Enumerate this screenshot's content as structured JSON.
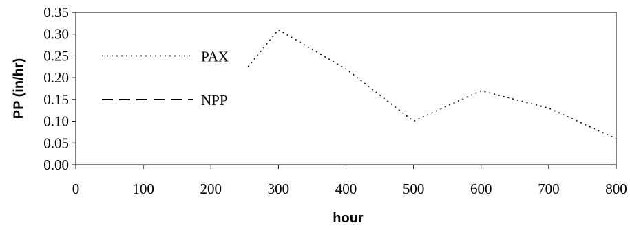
{
  "chart_data": {
    "type": "line",
    "title": "",
    "xlabel": "hour",
    "ylabel": "PP (in/hr)",
    "xlim": [
      0,
      800
    ],
    "ylim": [
      0,
      0.35
    ],
    "x_ticks": [
      "0",
      "100",
      "200",
      "300",
      "400",
      "500",
      "600",
      "700",
      "800"
    ],
    "y_ticks": [
      "0.00",
      "0.05",
      "0.10",
      "0.15",
      "0.20",
      "0.25",
      "0.30",
      "0.35"
    ],
    "grid": false,
    "legend_position": "left",
    "series": [
      {
        "name": "PAX",
        "style": "dotted",
        "color": "#000000",
        "x": [
          255,
          300,
          400,
          500,
          600,
          700,
          800
        ],
        "y": [
          0.225,
          0.31,
          0.22,
          0.1,
          0.17,
          0.13,
          0.06
        ]
      },
      {
        "name": "NPP",
        "style": "dashed",
        "color": "#000000",
        "x": [],
        "y": []
      }
    ]
  }
}
